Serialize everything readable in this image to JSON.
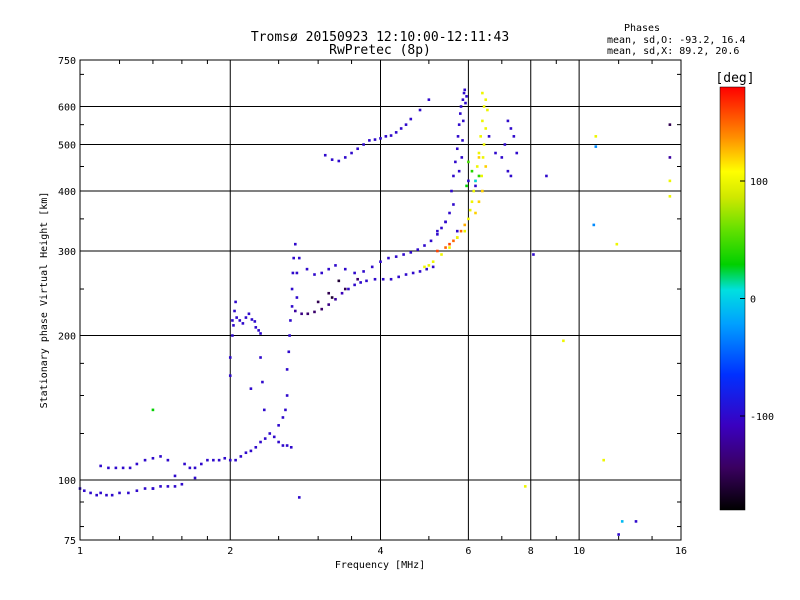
{
  "chart_data": {
    "type": "scatter",
    "title": "Tromsø 20150923 12:10:00-12:11:43",
    "subtitle": "RwPretec (8p)",
    "xlabel": "Frequency [MHz]",
    "ylabel": "Stationary phase Virtual Height [km]",
    "x_scale": "log",
    "y_scale": "log",
    "xlim": [
      1,
      16
    ],
    "ylim": [
      75,
      750
    ],
    "x_ticks": [
      1,
      2,
      4,
      6,
      8,
      10,
      16
    ],
    "y_ticks": [
      75,
      100,
      200,
      300,
      400,
      500,
      600,
      750
    ],
    "x_gridlines": [
      2,
      4,
      6,
      8,
      10
    ],
    "y_gridlines": [
      100,
      200,
      300,
      400,
      500,
      600
    ],
    "grid": true,
    "stats": {
      "heading": "Phases",
      "line_o": "mean, sd,O: -93.2, 16.4",
      "line_x": "mean, sd,X:  89.2, 20.6"
    },
    "colorbar": {
      "label": "[deg]",
      "range": [
        -180,
        180
      ],
      "ticks": [
        100,
        0,
        -100
      ],
      "palette": "rainbow (black-purple-blue-cyan-green-yellow-red)"
    },
    "series": [
      {
        "points": [
          [
            1.0,
            96,
            -100
          ],
          [
            1.02,
            95,
            -100
          ],
          [
            1.05,
            94,
            -100
          ],
          [
            1.08,
            93,
            -100
          ],
          [
            1.1,
            94,
            -100
          ],
          [
            1.13,
            93,
            -100
          ],
          [
            1.16,
            93,
            -100
          ],
          [
            1.2,
            94,
            -100
          ],
          [
            1.25,
            94,
            -100
          ],
          [
            1.3,
            95,
            -100
          ],
          [
            1.35,
            96,
            -100
          ],
          [
            1.4,
            96,
            -100
          ],
          [
            1.45,
            97,
            -100
          ],
          [
            1.5,
            97,
            -100
          ],
          [
            1.55,
            97,
            -100
          ],
          [
            1.6,
            98,
            -100
          ],
          [
            1.1,
            107,
            -100
          ],
          [
            1.14,
            106,
            -100
          ],
          [
            1.18,
            106,
            -100
          ],
          [
            1.22,
            106,
            -100
          ],
          [
            1.26,
            106,
            -100
          ],
          [
            1.3,
            108,
            -100
          ],
          [
            1.35,
            110,
            -100
          ],
          [
            1.4,
            111,
            -100
          ],
          [
            1.45,
            112,
            -100
          ],
          [
            1.5,
            110,
            -100
          ],
          [
            1.62,
            108,
            -100
          ],
          [
            1.66,
            106,
            -100
          ],
          [
            1.7,
            106,
            -100
          ],
          [
            1.75,
            108,
            -100
          ],
          [
            1.8,
            110,
            -100
          ],
          [
            1.85,
            110,
            -100
          ],
          [
            1.9,
            110,
            -100
          ],
          [
            1.95,
            111,
            -100
          ],
          [
            2.0,
            110,
            -100
          ],
          [
            2.05,
            110,
            -100
          ],
          [
            2.1,
            112,
            -100
          ],
          [
            2.15,
            114,
            -100
          ],
          [
            2.2,
            115,
            -100
          ],
          [
            2.25,
            117,
            -100
          ],
          [
            2.3,
            120,
            -100
          ],
          [
            2.35,
            122,
            -100
          ],
          [
            2.4,
            125,
            -100
          ],
          [
            2.45,
            123,
            -100
          ],
          [
            2.5,
            120,
            -100
          ],
          [
            2.55,
            118,
            -100
          ],
          [
            2.6,
            118,
            -100
          ],
          [
            2.65,
            117,
            -100
          ],
          [
            2.0,
            165,
            -100
          ],
          [
            2.0,
            180,
            -100
          ],
          [
            2.02,
            200,
            -100
          ],
          [
            2.02,
            215,
            -100
          ],
          [
            2.04,
            225,
            -100
          ],
          [
            2.05,
            235,
            -100
          ],
          [
            2.03,
            210,
            -100
          ],
          [
            2.06,
            218,
            -100
          ],
          [
            2.09,
            215,
            -100
          ],
          [
            2.12,
            212,
            -100
          ],
          [
            2.15,
            218,
            -100
          ],
          [
            2.18,
            222,
            -100
          ],
          [
            2.21,
            216,
            -100
          ],
          [
            2.24,
            214,
            -100
          ],
          [
            2.25,
            208,
            -100
          ],
          [
            2.28,
            205,
            -100
          ],
          [
            2.3,
            202,
            -100
          ],
          [
            2.3,
            180,
            -100
          ],
          [
            2.32,
            160,
            -100
          ],
          [
            2.34,
            140,
            -100
          ],
          [
            2.5,
            130,
            -100
          ],
          [
            2.55,
            135,
            -100
          ],
          [
            2.58,
            140,
            -100
          ],
          [
            2.6,
            150,
            -100
          ],
          [
            2.6,
            170,
            -100
          ],
          [
            2.62,
            185,
            -100
          ],
          [
            2.63,
            200,
            -100
          ],
          [
            2.64,
            215,
            -100
          ],
          [
            2.66,
            230,
            -100
          ],
          [
            2.66,
            250,
            -100
          ],
          [
            2.67,
            270,
            -100
          ],
          [
            2.68,
            290,
            -100
          ],
          [
            2.7,
            310,
            -100
          ],
          [
            2.72,
            270,
            -100
          ],
          [
            2.72,
            240,
            -100
          ],
          [
            2.7,
            225,
            -120
          ],
          [
            2.78,
            222,
            -130
          ],
          [
            2.86,
            222,
            -140
          ],
          [
            2.95,
            224,
            -140
          ],
          [
            3.05,
            227,
            -140
          ],
          [
            3.15,
            232,
            -130
          ],
          [
            3.25,
            238,
            -120
          ],
          [
            3.35,
            245,
            -110
          ],
          [
            3.45,
            250,
            -100
          ],
          [
            3.55,
            255,
            -100
          ],
          [
            3.65,
            258,
            -100
          ],
          [
            3.75,
            260,
            -100
          ],
          [
            3.9,
            262,
            -100
          ],
          [
            4.05,
            262,
            -100
          ],
          [
            4.2,
            262,
            -100
          ],
          [
            4.35,
            265,
            -100
          ],
          [
            4.5,
            268,
            -100
          ],
          [
            4.65,
            270,
            -100
          ],
          [
            4.8,
            272,
            -100
          ],
          [
            4.95,
            275,
            -100
          ],
          [
            5.1,
            278,
            -100
          ],
          [
            2.75,
            290,
            -100
          ],
          [
            2.85,
            275,
            -100
          ],
          [
            2.95,
            268,
            -100
          ],
          [
            3.05,
            270,
            -100
          ],
          [
            3.15,
            275,
            -100
          ],
          [
            3.25,
            280,
            -100
          ],
          [
            3.4,
            275,
            -100
          ],
          [
            3.55,
            270,
            -100
          ],
          [
            3.7,
            272,
            -100
          ],
          [
            3.85,
            278,
            -100
          ],
          [
            4.0,
            285,
            -100
          ],
          [
            4.15,
            290,
            -100
          ],
          [
            4.3,
            292,
            -100
          ],
          [
            4.45,
            295,
            -100
          ],
          [
            4.6,
            298,
            -100
          ],
          [
            4.75,
            302,
            -100
          ],
          [
            4.9,
            308,
            -100
          ],
          [
            5.05,
            315,
            -100
          ],
          [
            5.2,
            325,
            -100
          ],
          [
            5.3,
            335,
            -100
          ],
          [
            5.4,
            345,
            -100
          ],
          [
            5.5,
            360,
            -100
          ],
          [
            5.6,
            375,
            -100
          ],
          [
            5.55,
            400,
            -100
          ],
          [
            5.6,
            430,
            -100
          ],
          [
            5.65,
            460,
            -100
          ],
          [
            5.7,
            490,
            -100
          ],
          [
            5.72,
            520,
            -100
          ],
          [
            5.75,
            550,
            -100
          ],
          [
            5.78,
            580,
            -100
          ],
          [
            5.8,
            600,
            -100
          ],
          [
            5.85,
            620,
            -100
          ],
          [
            5.88,
            640,
            -100
          ],
          [
            5.9,
            650,
            -100
          ],
          [
            5.82,
            470,
            -100
          ],
          [
            5.84,
            510,
            -100
          ],
          [
            5.86,
            560,
            -100
          ],
          [
            5.75,
            440,
            -100
          ],
          [
            5.92,
            610,
            -100
          ],
          [
            5.95,
            630,
            -100
          ],
          [
            3.1,
            475,
            -100
          ],
          [
            3.2,
            465,
            -100
          ],
          [
            3.3,
            462,
            -100
          ],
          [
            3.4,
            470,
            -100
          ],
          [
            3.5,
            480,
            -100
          ],
          [
            3.6,
            490,
            -100
          ],
          [
            3.7,
            500,
            -100
          ],
          [
            3.8,
            510,
            -100
          ],
          [
            3.9,
            512,
            -100
          ],
          [
            4.0,
            515,
            -100
          ],
          [
            4.1,
            520,
            -100
          ],
          [
            4.2,
            522,
            -100
          ],
          [
            4.3,
            530,
            -100
          ],
          [
            4.4,
            540,
            -100
          ],
          [
            4.5,
            550,
            -100
          ],
          [
            4.6,
            565,
            -100
          ],
          [
            4.8,
            590,
            -100
          ],
          [
            5.0,
            620,
            -100
          ],
          [
            5.2,
            330,
            -100
          ],
          [
            5.4,
            345,
            -100
          ],
          [
            5.7,
            330,
            -100
          ],
          [
            6.0,
            420,
            -100
          ],
          [
            6.2,
            410,
            -100
          ],
          [
            6.6,
            520,
            -100
          ],
          [
            6.8,
            480,
            -100
          ],
          [
            7.0,
            470,
            -100
          ],
          [
            7.1,
            500,
            -100
          ],
          [
            7.2,
            560,
            -100
          ],
          [
            7.3,
            540,
            -100
          ],
          [
            7.4,
            520,
            -100
          ],
          [
            7.5,
            480,
            -100
          ],
          [
            7.2,
            440,
            -100
          ],
          [
            7.3,
            430,
            -100
          ],
          [
            8.1,
            295,
            -100
          ],
          [
            8.6,
            430,
            -100
          ],
          [
            2.75,
            92,
            -100
          ],
          [
            1.4,
            96,
            -100
          ],
          [
            1.55,
            102,
            -100
          ],
          [
            1.7,
            101,
            -100
          ],
          [
            2.2,
            155,
            -100
          ],
          [
            13.0,
            82,
            -100
          ],
          [
            12.0,
            77,
            -100
          ],
          [
            3.0,
            235,
            -150
          ],
          [
            3.2,
            240,
            -160
          ],
          [
            3.4,
            250,
            -150
          ],
          [
            3.6,
            262,
            -140
          ],
          [
            3.3,
            260,
            -160
          ],
          [
            3.15,
            245,
            -150
          ],
          [
            5.2,
            300,
            160
          ],
          [
            5.4,
            305,
            150
          ],
          [
            5.6,
            315,
            150
          ],
          [
            5.8,
            330,
            150
          ],
          [
            5.7,
            320,
            140
          ],
          [
            5.5,
            310,
            160
          ],
          [
            5.9,
            340,
            130
          ],
          [
            6.4,
            640,
            100
          ],
          [
            6.45,
            600,
            100
          ],
          [
            6.4,
            560,
            100
          ],
          [
            6.35,
            520,
            100
          ],
          [
            6.3,
            480,
            100
          ],
          [
            6.25,
            450,
            100
          ],
          [
            6.2,
            420,
            100
          ],
          [
            6.15,
            400,
            100
          ],
          [
            6.1,
            380,
            100
          ],
          [
            6.05,
            365,
            100
          ],
          [
            6.0,
            350,
            100
          ],
          [
            5.9,
            330,
            100
          ],
          [
            5.7,
            320,
            100
          ],
          [
            5.5,
            305,
            100
          ],
          [
            5.3,
            295,
            100
          ],
          [
            5.1,
            285,
            100
          ],
          [
            5.0,
            280,
            100
          ],
          [
            4.9,
            278,
            100
          ],
          [
            6.5,
            620,
            100
          ],
          [
            6.55,
            590,
            100
          ],
          [
            6.5,
            540,
            100
          ],
          [
            6.45,
            500,
            100
          ],
          [
            6.42,
            470,
            100
          ],
          [
            6.38,
            430,
            100
          ],
          [
            6.0,
            460,
            50
          ],
          [
            6.1,
            440,
            40
          ],
          [
            5.95,
            410,
            30
          ],
          [
            6.2,
            420,
            0
          ],
          [
            6.3,
            430,
            40
          ],
          [
            1.4,
            140,
            30
          ],
          [
            6.3,
            470,
            120
          ],
          [
            6.5,
            450,
            120
          ],
          [
            6.4,
            400,
            120
          ],
          [
            6.3,
            380,
            120
          ],
          [
            6.2,
            360,
            120
          ],
          [
            10.8,
            520,
            100
          ],
          [
            11.9,
            310,
            100
          ],
          [
            15.2,
            390,
            100
          ],
          [
            15.2,
            420,
            100
          ],
          [
            15.2,
            550,
            -150
          ],
          [
            10.7,
            340,
            -30
          ],
          [
            9.3,
            195,
            100
          ],
          [
            11.2,
            110,
            100
          ],
          [
            7.8,
            97,
            100
          ],
          [
            12.2,
            82,
            -10
          ],
          [
            15.2,
            470,
            -120
          ],
          [
            10.8,
            495,
            -30
          ]
        ]
      }
    ]
  }
}
